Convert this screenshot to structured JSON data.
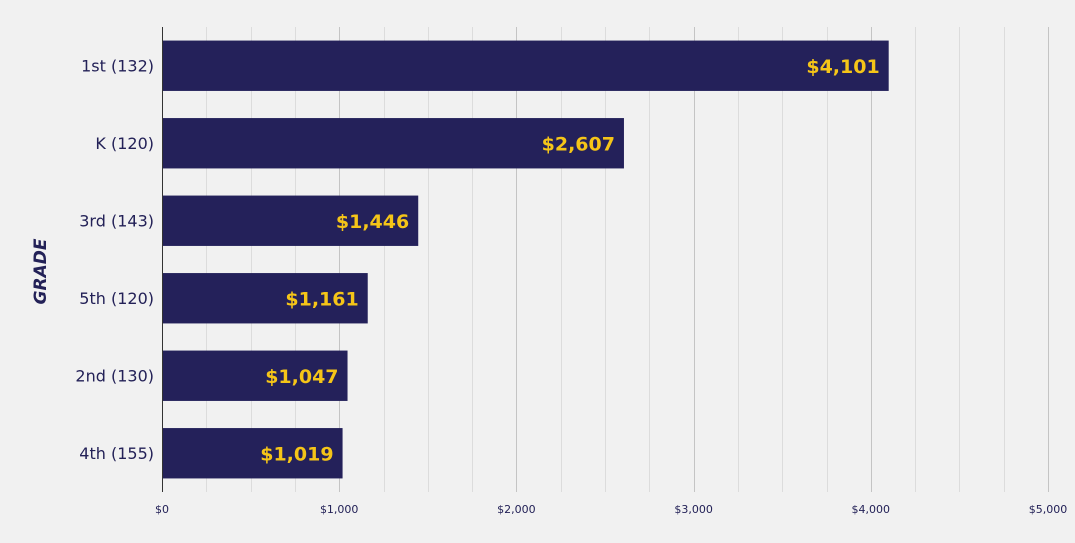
{
  "chart_data": {
    "type": "bar",
    "orientation": "horizontal",
    "ylabel": "GRADE",
    "categories": [
      "1st (132)",
      "K (120)",
      "3rd (143)",
      "5th (120)",
      "2nd (130)",
      "4th (155)"
    ],
    "values": [
      4101,
      2607,
      1446,
      1161,
      1047,
      1019
    ],
    "data_labels": [
      "$4,101",
      "$2,607",
      "$1,446",
      "$1,161",
      "$1,047",
      "$1,019"
    ],
    "xlim": [
      0,
      5000
    ],
    "x_ticks": [
      0,
      1000,
      2000,
      3000,
      4000,
      5000
    ],
    "x_tick_labels": [
      "$0",
      "$1,000",
      "$2,000",
      "$3,000",
      "$4,000",
      "$5,000"
    ],
    "grid": true,
    "colors": {
      "bar": "#24215a",
      "data_label": "#f5c518",
      "text": "#232157",
      "grid_major": "#c4c4c4",
      "grid_minor": "#dcdcdc",
      "axis": "#333333",
      "background": "#f1f1f1"
    }
  }
}
